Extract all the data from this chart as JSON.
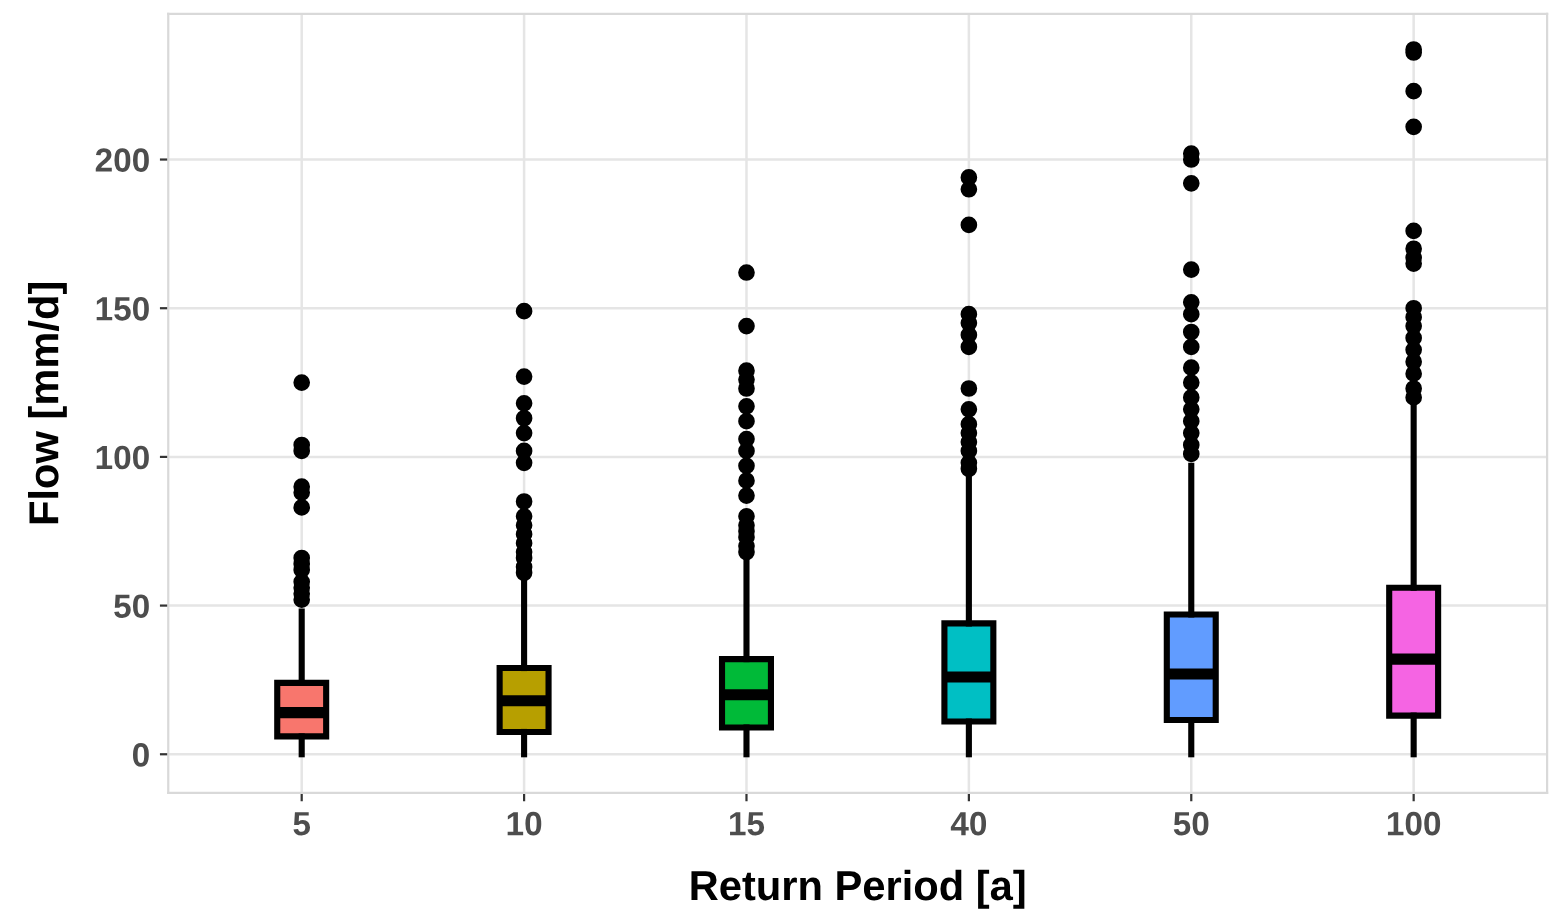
{
  "chart_data": {
    "type": "box",
    "xlabel": "Return Period [a]",
    "ylabel": "Flow [mm/d]",
    "categories": [
      "5",
      "10",
      "15",
      "40",
      "50",
      "100"
    ],
    "colors": [
      "#f8766d",
      "#b79f00",
      "#00ba38",
      "#00bfc4",
      "#619cff",
      "#f564e3"
    ],
    "boxes": [
      {
        "low": 0,
        "q1": 6,
        "median": 14,
        "q3": 24,
        "high": 48,
        "outliers": [
          125,
          104,
          102,
          90,
          88,
          83,
          66,
          64,
          62,
          58,
          56,
          54,
          52
        ]
      },
      {
        "low": 0,
        "q1": 7.5,
        "median": 18,
        "q3": 29,
        "high": 59,
        "outliers": [
          149,
          127,
          118,
          113,
          108,
          102,
          98,
          85,
          80,
          77,
          74,
          71,
          68,
          66,
          63,
          61
        ]
      },
      {
        "low": 0,
        "q1": 9,
        "median": 20,
        "q3": 32,
        "high": 67,
        "outliers": [
          162,
          144,
          129,
          126,
          123,
          117,
          112,
          106,
          102,
          97,
          92,
          87,
          80,
          77,
          75,
          73,
          70,
          68
        ]
      },
      {
        "low": 0,
        "q1": 11,
        "median": 26,
        "q3": 44,
        "high": 93,
        "outliers": [
          194,
          190,
          178,
          148,
          145,
          141,
          137,
          123,
          116,
          111,
          108,
          105,
          102,
          98,
          96
        ]
      },
      {
        "low": 0,
        "q1": 11.5,
        "median": 27,
        "q3": 47,
        "high": 97,
        "outliers": [
          202,
          200,
          192,
          163,
          152,
          148,
          142,
          137,
          130,
          125,
          120,
          116,
          112,
          108,
          104,
          101
        ]
      },
      {
        "low": 0,
        "q1": 13,
        "median": 32,
        "q3": 56,
        "high": 117,
        "outliers": [
          237,
          236,
          223,
          211,
          176,
          170,
          167,
          165,
          150,
          147,
          144,
          140,
          136,
          132,
          128,
          123,
          120
        ]
      }
    ],
    "ylim": [
      -13,
      249
    ],
    "yticks": [
      0,
      50,
      100,
      150,
      200
    ],
    "grid": true
  }
}
